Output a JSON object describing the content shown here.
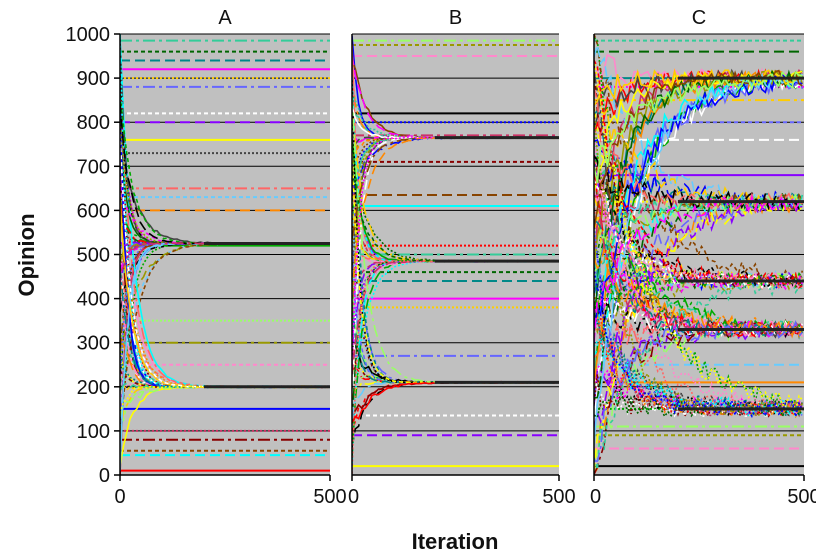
{
  "figure": {
    "ylabel": "Opinion",
    "xlabel": "Iteration"
  },
  "chart_data": [
    {
      "type": "line",
      "title": "A",
      "xlim": [
        0,
        500
      ],
      "ylim": [
        0,
        1000
      ],
      "xticks": [
        0,
        500
      ],
      "yticks": [
        0,
        100,
        200,
        300,
        400,
        500,
        600,
        700,
        800,
        900,
        1000
      ],
      "grid": true,
      "background": "#c0c0c0",
      "clusters": [
        525,
        200
      ],
      "fixed_levels": [
        10,
        45,
        55,
        80,
        100,
        150,
        200,
        250,
        300,
        350,
        520,
        600,
        630,
        650,
        730,
        760,
        800,
        820,
        880,
        900,
        920,
        940,
        960,
        985
      ]
    },
    {
      "type": "line",
      "title": "B",
      "xlim": [
        0,
        500
      ],
      "ylim": [
        0,
        1000
      ],
      "xticks": [
        0,
        500
      ],
      "yticks": [
        0,
        100,
        200,
        300,
        400,
        500,
        600,
        700,
        800,
        900,
        1000
      ],
      "grid": true,
      "background": "#c0c0c0",
      "clusters": [
        765,
        485,
        210
      ],
      "fixed_levels": [
        20,
        90,
        135,
        270,
        380,
        400,
        440,
        460,
        500,
        520,
        610,
        635,
        710,
        770,
        800,
        820,
        950,
        975,
        985
      ]
    },
    {
      "type": "line",
      "title": "C",
      "xlim": [
        0,
        500
      ],
      "ylim": [
        0,
        1000
      ],
      "xticks": [
        0,
        500
      ],
      "yticks": [
        0,
        100,
        200,
        300,
        400,
        500,
        600,
        700,
        800,
        900,
        1000
      ],
      "grid": true,
      "background": "#c0c0c0",
      "clusters": [
        900,
        620,
        440,
        330,
        150
      ],
      "fixed_levels": [
        20,
        60,
        90,
        110,
        150,
        210,
        250,
        330,
        440,
        620,
        680,
        760,
        800,
        850,
        880,
        900,
        960,
        985
      ]
    }
  ]
}
